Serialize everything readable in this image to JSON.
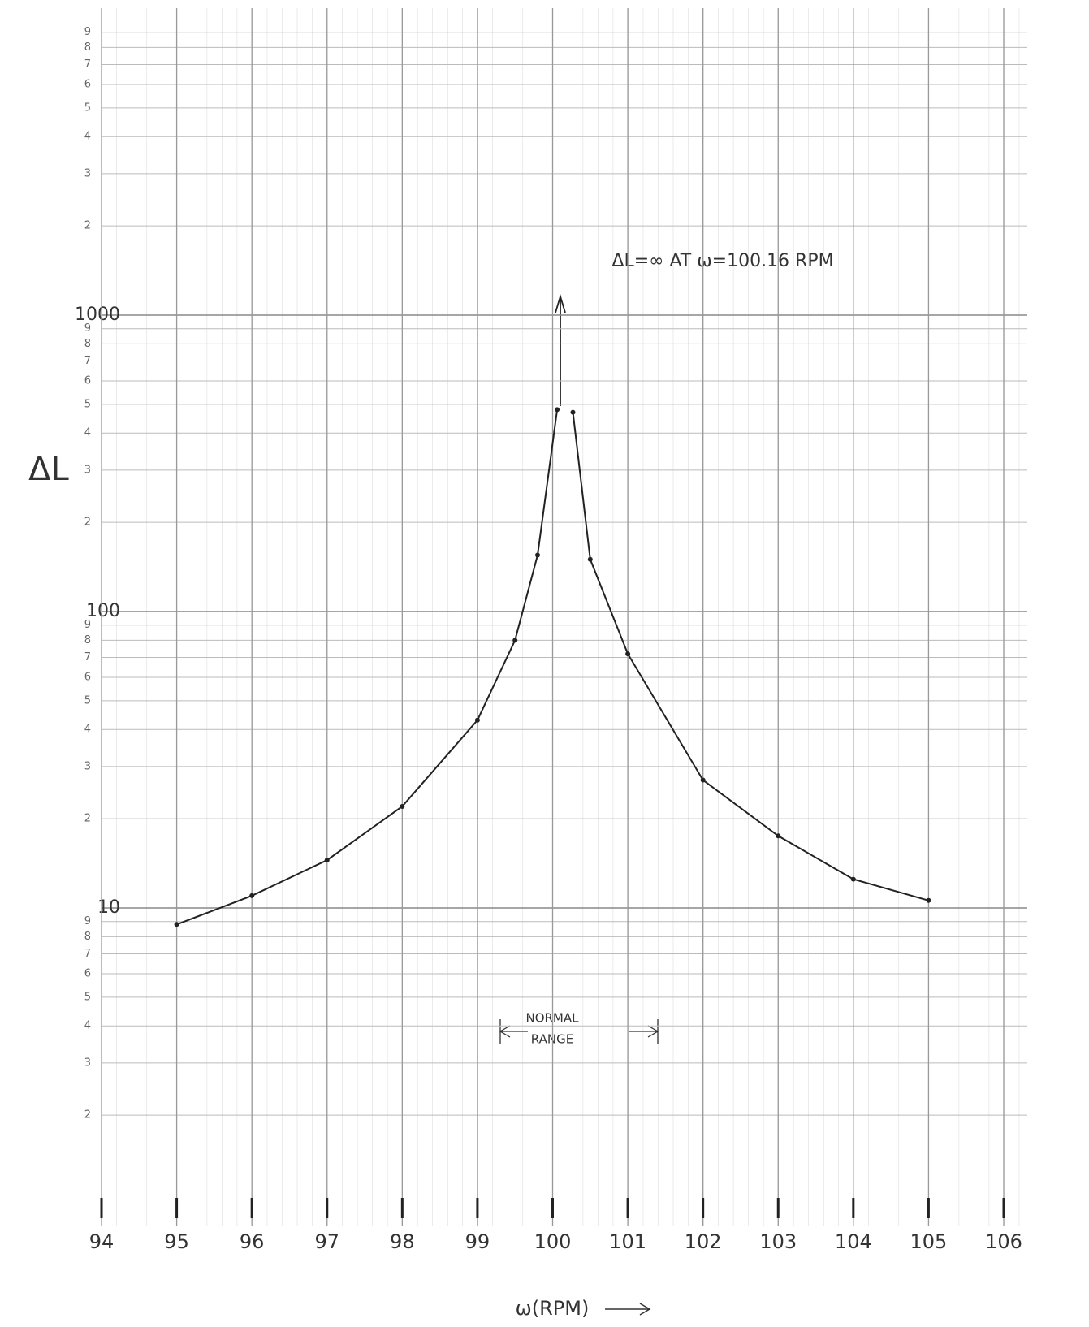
{
  "chart_data": {
    "type": "line",
    "x_label": "ω(RPM)",
    "y_label": "ΔL",
    "annotations": [
      "ΔL=∞ AT ω=100.16 RPM",
      "NORMAL",
      "RANGE"
    ],
    "series": [
      {
        "color": "#222222",
        "x": [
          95,
          96,
          97,
          98,
          99,
          99.5,
          99.8,
          100.06
        ],
        "values": [
          8.8,
          11,
          14.5,
          22,
          43,
          80,
          155,
          480
        ]
      },
      {
        "color": "#222222",
        "x": [
          100.27,
          100.5,
          101,
          102,
          103,
          104,
          105
        ],
        "values": [
          470,
          150,
          72,
          27,
          17.5,
          12.5,
          10.6
        ]
      }
    ],
    "xlim": [
      94,
      106
    ],
    "xticks": [
      94,
      95,
      96,
      97,
      98,
      99,
      100,
      101,
      102,
      103,
      104,
      105,
      106
    ],
    "ylim": [
      1,
      10000
    ],
    "log_y": true,
    "grid": true,
    "yticks": [
      2,
      3,
      4,
      5,
      6,
      7,
      8,
      9,
      10,
      {
        "value": 20,
        "label": "2"
      },
      {
        "value": 30,
        "label": "3"
      },
      {
        "value": 40,
        "label": "4"
      },
      {
        "value": 50,
        "label": "5"
      },
      {
        "value": 60,
        "label": "6"
      },
      {
        "value": 70,
        "label": "7"
      },
      {
        "value": 80,
        "label": "8"
      },
      {
        "value": 90,
        "label": "9"
      },
      100,
      {
        "value": 200,
        "label": "2"
      },
      {
        "value": 300,
        "label": "3"
      },
      {
        "value": 400,
        "label": "4"
      },
      {
        "value": 500,
        "label": "5"
      },
      {
        "value": 600,
        "label": "6"
      },
      {
        "value": 700,
        "label": "7"
      },
      {
        "value": 800,
        "label": "8"
      },
      {
        "value": 900,
        "label": "9"
      },
      1000,
      {
        "value": 2000,
        "label": "2"
      },
      {
        "value": 3000,
        "label": "3"
      },
      {
        "value": 4000,
        "label": "4"
      },
      {
        "value": 5000,
        "label": "5"
      },
      {
        "value": 6000,
        "label": "6"
      },
      {
        "value": 7000,
        "label": "7"
      },
      {
        "value": 8000,
        "label": "8"
      },
      {
        "value": 9000,
        "label": "9"
      }
    ]
  }
}
